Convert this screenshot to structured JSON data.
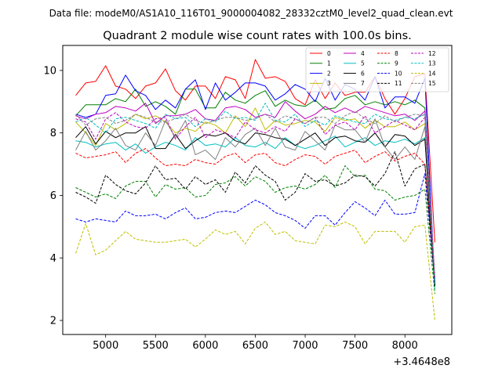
{
  "figure": {
    "suptitle": "Data file: modeM0/AS1A10_116T01_9000004082_28332cztM0_level2_quad_clean.evt"
  },
  "chart_data": {
    "type": "line",
    "title": "Quadrant 2 module wise count rates with 100.0s bins.",
    "xlabel": "",
    "ylabel": "",
    "x_offset_label": "+3.4648e8",
    "xlim": [
      4570,
      8470
    ],
    "ylim": [
      1.55,
      10.8
    ],
    "xticks": [
      5000,
      5500,
      6000,
      6500,
      7000,
      7500,
      8000
    ],
    "yticks": [
      2,
      4,
      6,
      8,
      10
    ],
    "grid": false,
    "legend_position": "top-right",
    "x": [
      4700,
      4800,
      4900,
      5000,
      5100,
      5200,
      5300,
      5400,
      5500,
      5600,
      5700,
      5800,
      5900,
      6000,
      6100,
      6200,
      6300,
      6400,
      6500,
      6600,
      6700,
      6800,
      6900,
      7000,
      7100,
      7200,
      7300,
      7400,
      7500,
      7600,
      7700,
      7800,
      7900,
      8000,
      8100,
      8200,
      8300
    ],
    "series": [
      {
        "name": "0",
        "color": "#ff0000",
        "dash": "solid",
        "values": [
          9.2,
          9.6,
          9.65,
          10.15,
          9.5,
          9.4,
          9.1,
          9.5,
          9.6,
          10.05,
          9.35,
          9.05,
          9.5,
          9.5,
          9.1,
          9.8,
          9.7,
          9.1,
          10.35,
          9.75,
          9.8,
          9.65,
          9.1,
          8.9,
          9.7,
          9.1,
          9.6,
          9.2,
          9.3,
          9.3,
          9.8,
          9.1,
          8.6,
          9.1,
          9.8,
          9.9,
          4.5
        ]
      },
      {
        "name": "1",
        "color": "#008000",
        "dash": "solid",
        "values": [
          8.55,
          8.9,
          8.9,
          8.9,
          9.1,
          9.0,
          9.4,
          8.85,
          9.0,
          8.85,
          8.6,
          9.4,
          9.4,
          8.8,
          8.8,
          9.3,
          9.05,
          8.95,
          9.2,
          9.35,
          8.85,
          9.05,
          8.9,
          8.85,
          9.05,
          8.75,
          8.8,
          9.1,
          9.2,
          8.9,
          9.0,
          8.9,
          9.0,
          8.9,
          9.05,
          8.8,
          3.2
        ]
      },
      {
        "name": "2",
        "color": "#0000ff",
        "dash": "solid",
        "values": [
          8.6,
          8.5,
          8.6,
          9.2,
          9.25,
          9.85,
          9.35,
          9.2,
          8.75,
          9.05,
          8.8,
          9.4,
          9.7,
          8.75,
          9.6,
          9.05,
          9.3,
          9.6,
          9.6,
          9.5,
          9.05,
          9.25,
          9.55,
          9.4,
          9.0,
          9.75,
          9.05,
          9.55,
          9.4,
          9.05,
          9.8,
          8.8,
          9.15,
          9.15,
          8.95,
          9.75,
          3.1
        ]
      },
      {
        "name": "3",
        "color": "#bfbf00",
        "dash": "solid",
        "values": [
          8.35,
          8.0,
          7.6,
          8.3,
          8.1,
          8.3,
          8.6,
          8.45,
          8.55,
          8.35,
          8.0,
          8.15,
          8.05,
          8.35,
          8.25,
          8.0,
          8.55,
          8.2,
          8.8,
          8.1,
          8.4,
          8.25,
          8.3,
          8.4,
          8.35,
          8.05,
          8.5,
          8.4,
          8.45,
          8.15,
          8.4,
          8.2,
          8.2,
          8.35,
          8.1,
          8.3,
          3.3
        ]
      },
      {
        "name": "4",
        "color": "#bf00bf",
        "dash": "solid",
        "values": [
          8.55,
          8.45,
          8.6,
          8.65,
          8.85,
          8.8,
          8.7,
          8.95,
          8.3,
          8.55,
          8.55,
          8.6,
          8.75,
          8.45,
          8.4,
          8.8,
          8.85,
          8.75,
          8.5,
          8.6,
          8.5,
          9.0,
          8.7,
          8.45,
          8.6,
          8.85,
          8.65,
          8.8,
          8.65,
          8.85,
          8.75,
          8.65,
          8.55,
          8.6,
          8.4,
          8.7,
          3.3
        ]
      },
      {
        "name": "5",
        "color": "#00bfbf",
        "dash": "solid",
        "values": [
          7.75,
          7.7,
          7.55,
          7.65,
          7.7,
          7.45,
          7.65,
          7.35,
          7.55,
          7.7,
          7.6,
          7.45,
          7.85,
          7.6,
          7.65,
          7.55,
          7.85,
          7.6,
          7.55,
          7.7,
          7.5,
          7.85,
          7.6,
          7.5,
          7.6,
          7.75,
          7.9,
          7.55,
          7.7,
          7.85,
          7.6,
          7.75,
          7.7,
          7.8,
          7.65,
          7.85,
          3.0
        ]
      },
      {
        "name": "6",
        "color": "#000000",
        "dash": "solid",
        "values": [
          7.85,
          8.2,
          7.65,
          8.05,
          7.85,
          8.0,
          8.0,
          8.2,
          7.5,
          7.5,
          7.95,
          7.5,
          7.75,
          7.95,
          7.9,
          8.0,
          7.75,
          7.65,
          8.0,
          7.95,
          7.85,
          7.8,
          7.6,
          7.8,
          8.0,
          7.6,
          7.85,
          7.9,
          7.75,
          7.7,
          8.0,
          7.55,
          7.95,
          7.9,
          7.6,
          7.8,
          3.1
        ]
      },
      {
        "name": "7",
        "color": "#808080",
        "dash": "solid",
        "values": [
          7.45,
          8.05,
          7.45,
          7.75,
          8.15,
          7.6,
          7.45,
          8.0,
          7.6,
          8.4,
          7.85,
          8.4,
          7.3,
          7.45,
          7.15,
          7.85,
          7.55,
          7.95,
          8.15,
          7.6,
          8.15,
          7.55,
          7.45,
          8.05,
          7.75,
          7.45,
          8.25,
          8.1,
          8.1,
          7.7,
          8.45,
          7.55,
          7.15,
          7.55,
          7.15,
          8.2,
          3.2
        ]
      },
      {
        "name": "8",
        "color": "#ff0000",
        "dash": "dashed",
        "values": [
          7.35,
          7.2,
          7.25,
          7.3,
          7.4,
          7.05,
          7.35,
          7.5,
          7.2,
          6.95,
          7.0,
          6.95,
          7.15,
          7.05,
          7.0,
          7.25,
          7.35,
          7.05,
          7.3,
          7.35,
          7.05,
          6.95,
          7.15,
          7.3,
          7.25,
          7.0,
          7.25,
          7.35,
          7.45,
          7.05,
          7.25,
          7.4,
          7.1,
          7.25,
          7.35,
          7.0,
          3.3
        ]
      },
      {
        "name": "9",
        "color": "#008000",
        "dash": "dashed",
        "values": [
          6.25,
          6.1,
          5.95,
          6.05,
          5.9,
          6.3,
          6.45,
          6.45,
          5.95,
          6.35,
          6.2,
          6.25,
          5.95,
          6.0,
          6.35,
          6.4,
          6.6,
          6.3,
          6.6,
          6.45,
          6.1,
          6.25,
          6.3,
          6.2,
          6.35,
          6.65,
          6.25,
          6.95,
          6.6,
          6.65,
          6.2,
          6.15,
          5.85,
          5.95,
          6.0,
          6.2,
          2.85
        ]
      },
      {
        "name": "10",
        "color": "#0000ff",
        "dash": "dashed",
        "values": [
          5.25,
          5.15,
          5.25,
          5.2,
          5.15,
          5.5,
          5.35,
          5.35,
          5.4,
          5.25,
          5.45,
          5.6,
          5.25,
          5.3,
          5.45,
          5.5,
          5.45,
          5.65,
          5.85,
          5.7,
          5.45,
          5.35,
          5.2,
          4.95,
          5.35,
          5.35,
          5.05,
          5.45,
          5.8,
          5.6,
          5.35,
          5.85,
          5.4,
          5.4,
          5.45,
          6.7,
          3.2
        ]
      },
      {
        "name": "11",
        "color": "#000000",
        "dash": "dashed",
        "values": [
          6.1,
          5.95,
          5.75,
          6.65,
          6.35,
          6.15,
          6.05,
          6.4,
          6.95,
          6.5,
          6.55,
          6.2,
          6.6,
          6.35,
          6.5,
          6.1,
          6.75,
          6.4,
          6.95,
          6.65,
          6.45,
          5.85,
          6.1,
          6.7,
          6.45,
          6.5,
          6.3,
          6.4,
          6.65,
          6.6,
          6.3,
          6.7,
          7.4,
          6.3,
          6.85,
          7.0,
          3.2
        ]
      },
      {
        "name": "12",
        "color": "#bf00bf",
        "dash": "dashed",
        "values": [
          8.45,
          8.35,
          7.8,
          8.45,
          8.65,
          8.35,
          8.2,
          8.15,
          8.45,
          8.5,
          7.8,
          8.2,
          8.5,
          7.85,
          8.1,
          8.0,
          7.85,
          8.35,
          8.1,
          8.0,
          8.2,
          8.05,
          8.45,
          8.3,
          8.5,
          7.95,
          8.25,
          8.35,
          8.1,
          8.55,
          8.0,
          8.2,
          8.4,
          8.25,
          8.1,
          8.5,
          3.3
        ]
      },
      {
        "name": "13",
        "color": "#00bfbf",
        "dash": "dashed",
        "values": [
          8.35,
          8.5,
          8.25,
          8.0,
          8.45,
          8.5,
          8.4,
          8.3,
          8.15,
          8.6,
          8.45,
          8.5,
          8.2,
          8.45,
          8.35,
          8.7,
          8.45,
          8.5,
          8.4,
          8.95,
          8.4,
          8.35,
          8.6,
          8.2,
          8.4,
          8.25,
          8.55,
          8.45,
          8.35,
          8.3,
          8.6,
          8.45,
          8.4,
          8.5,
          8.45,
          8.6,
          3.2
        ]
      },
      {
        "name": "14",
        "color": "#bfbf00",
        "dash": "dashed",
        "values": [
          4.15,
          5.1,
          4.1,
          4.25,
          4.55,
          4.85,
          4.6,
          4.55,
          4.5,
          4.5,
          4.55,
          4.6,
          4.35,
          4.6,
          4.9,
          4.75,
          4.85,
          4.45,
          4.95,
          5.15,
          4.75,
          4.85,
          4.55,
          4.5,
          4.45,
          5.05,
          5.0,
          5.15,
          5.0,
          4.45,
          4.85,
          4.85,
          4.85,
          4.5,
          5.0,
          5.05,
          2.0
        ]
      },
      {
        "name": "15",
        "color": "#808080",
        "dash": "dashed",
        "values": [
          8.6,
          8.25,
          8.45,
          8.5,
          8.3,
          8.4,
          8.6,
          8.5,
          8.35,
          8.35,
          8.45,
          8.6,
          8.4,
          8.3,
          8.4,
          8.5,
          8.5,
          8.4,
          8.45,
          8.6,
          8.35,
          8.55,
          8.45,
          8.3,
          8.5,
          8.5,
          8.3,
          8.55,
          8.7,
          8.45,
          8.3,
          8.55,
          8.35,
          8.5,
          8.6,
          8.55,
          3.4
        ]
      }
    ]
  }
}
